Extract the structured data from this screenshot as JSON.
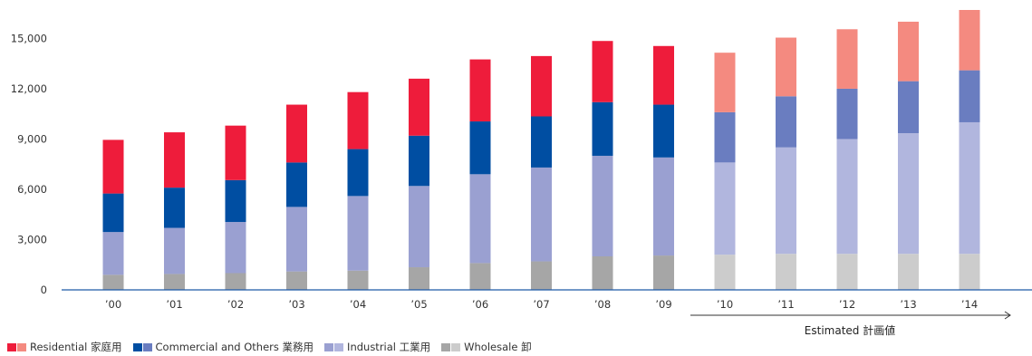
{
  "chart_data": {
    "type": "bar",
    "stacked": true,
    "categories": [
      "’00",
      "’01",
      "’02",
      "’03",
      "’04",
      "’05",
      "’06",
      "’07",
      "’08",
      "’09",
      "’10",
      "’11",
      "’12",
      "’13",
      "’14"
    ],
    "estimated_from_index": 10,
    "estimated_label": "Estimated  計画値",
    "yticks": [
      0,
      3000,
      6000,
      9000,
      12000,
      15000
    ],
    "ytick_labels": [
      "0",
      "3,000",
      "6,000",
      "9,000",
      "12,000",
      "15,000"
    ],
    "ylim": [
      0,
      16700
    ],
    "series": [
      {
        "name": "Wholesale  卸",
        "color": "#a6a6a6",
        "color_estimated": "#cccccc",
        "values": [
          900,
          950,
          1000,
          1100,
          1150,
          1350,
          1600,
          1700,
          2000,
          2050,
          2100,
          2150,
          2150,
          2150,
          2150
        ]
      },
      {
        "name": "Industrial  工業用",
        "color": "#9aa0d1",
        "color_estimated": "#b1b6de",
        "values": [
          2550,
          2750,
          3050,
          3850,
          4450,
          4850,
          5300,
          5600,
          6000,
          5850,
          5500,
          6350,
          6850,
          7200,
          7850
        ]
      },
      {
        "name": "Commercial and Others  業務用",
        "color": "#004ea2",
        "color_estimated": "#6a7dc0",
        "values": [
          2300,
          2400,
          2500,
          2650,
          2800,
          3000,
          3150,
          3050,
          3200,
          3150,
          3000,
          3050,
          3000,
          3100,
          3100
        ]
      },
      {
        "name": "Residential  家庭用",
        "color": "#ee1c3b",
        "color_estimated": "#f48a80",
        "values": [
          3200,
          3300,
          3250,
          3450,
          3400,
          3400,
          3700,
          3600,
          3650,
          3500,
          3550,
          3500,
          3550,
          3550,
          3600
        ]
      }
    ],
    "legend_order": [
      3,
      2,
      1,
      0
    ],
    "legend_position": "bottom-left",
    "grid": false
  }
}
